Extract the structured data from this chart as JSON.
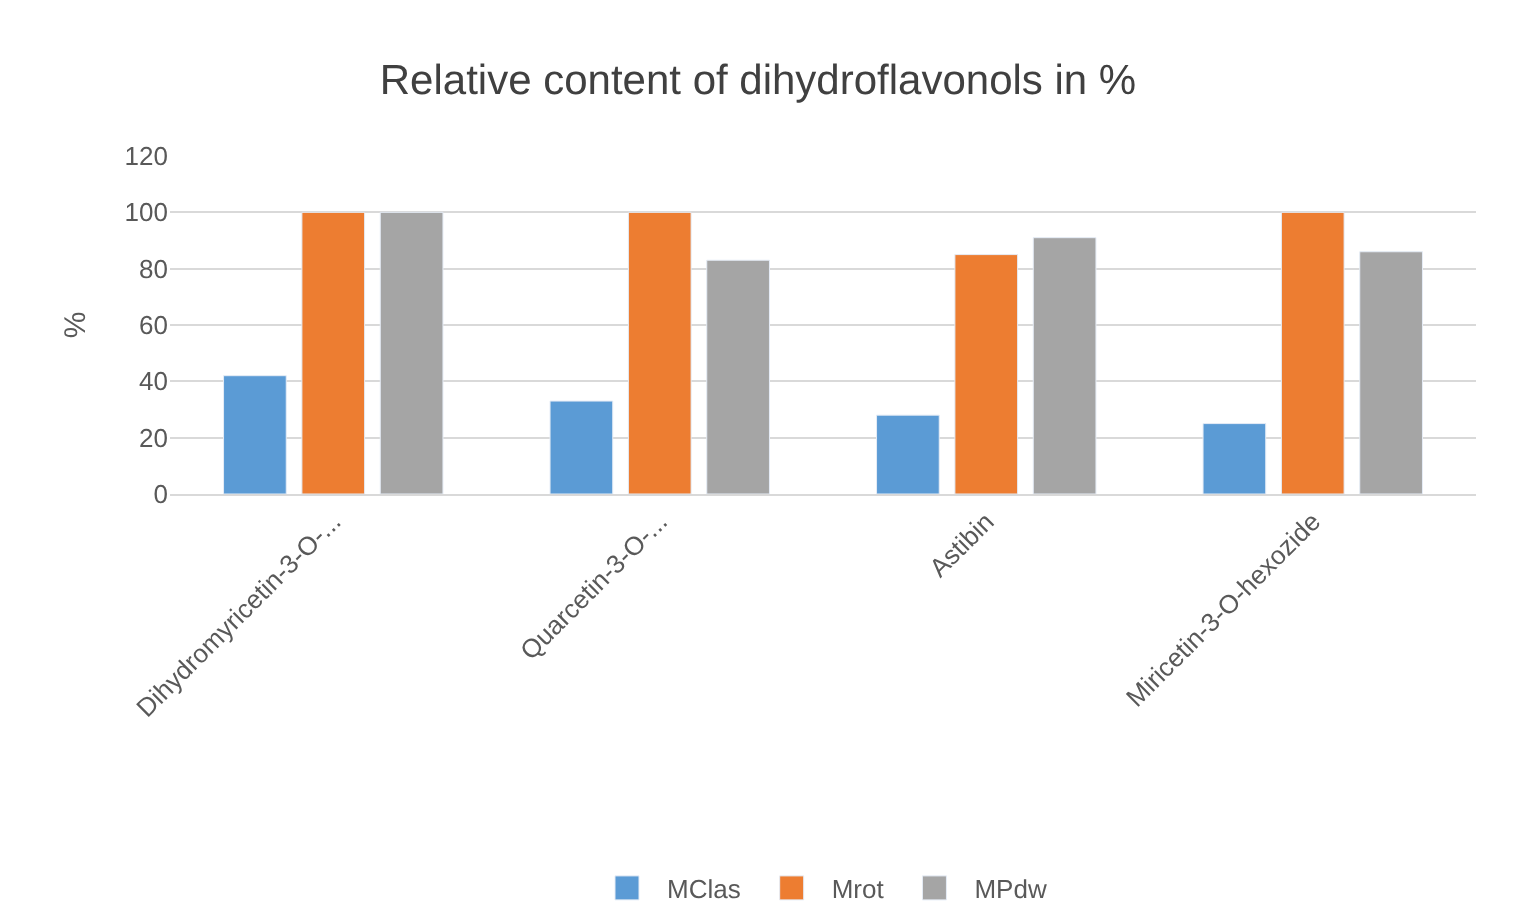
{
  "chart_data": {
    "type": "bar",
    "title": "Relative content of dihydroflavonols in %",
    "ylabel": "%",
    "categories": [
      "Dihydromyricetin-3-O-...",
      "Quarcetin-3-O-...",
      "Astibin",
      "Miricetin-3-O-hexozide"
    ],
    "series": [
      {
        "name": "MClas",
        "color": "#5b9bd5",
        "values": [
          42,
          33,
          28,
          25
        ]
      },
      {
        "name": "Mrot",
        "color": "#ed7d31",
        "values": [
          100,
          100,
          85,
          100
        ]
      },
      {
        "name": "MPdw",
        "color": "#a5a5a5",
        "values": [
          100,
          83,
          91,
          86
        ]
      }
    ],
    "ylim": [
      0,
      120
    ],
    "yticks": [
      0,
      20,
      40,
      60,
      80,
      100,
      120
    ],
    "grid": "y",
    "legend": "bottom"
  }
}
